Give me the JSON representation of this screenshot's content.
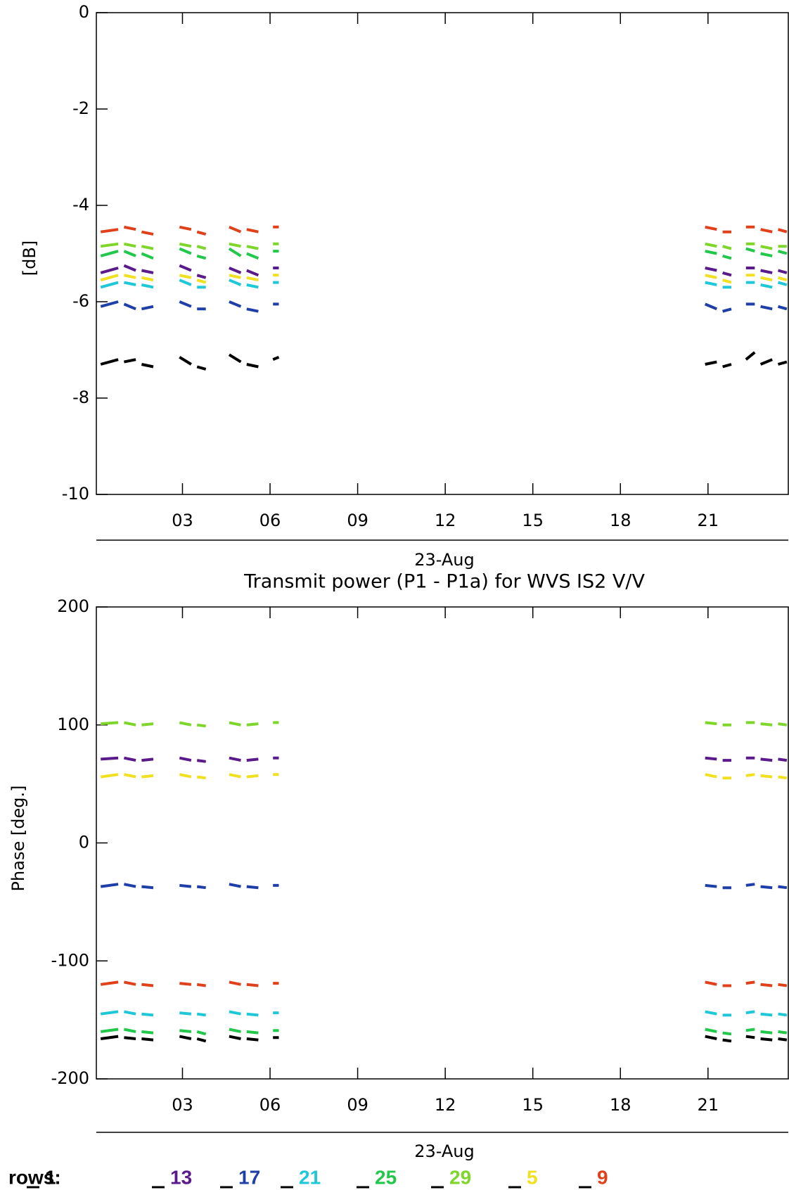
{
  "chart_data": [
    {
      "type": "line",
      "y_label": "[dB]",
      "x_label": "23-Aug",
      "x": [
        0.2,
        0.8,
        0.9,
        1.0,
        1.4,
        1.5,
        1.6,
        2.0,
        2.4,
        2.9,
        3.3,
        3.4,
        3.5,
        3.8,
        4.2,
        4.6,
        5.0,
        5.1,
        5.2,
        5.6,
        5.8,
        6.1,
        6.3,
        13.0,
        20.9,
        21.3,
        21.4,
        21.5,
        21.8,
        22.0,
        22.3,
        22.6,
        22.7,
        22.8,
        23.2,
        23.3,
        23.4,
        23.7
      ],
      "xlim": [
        0.05,
        23.75
      ],
      "xticks": [
        {
          "value": 3,
          "label": "03"
        },
        {
          "value": 6,
          "label": "06"
        },
        {
          "value": 9,
          "label": "09"
        },
        12,
        15,
        18,
        21
      ],
      "ylim": [
        -10,
        0
      ],
      "yticks": [
        -10,
        -8,
        -6,
        -4,
        -2,
        0
      ],
      "legend_title": "rows:",
      "series": [
        {
          "name": "1",
          "color": "#000000",
          "values": [
            -7.3,
            -7.2,
            null,
            -7.25,
            -7.2,
            null,
            -7.3,
            -7.35,
            null,
            -7.15,
            -7.3,
            null,
            -7.35,
            -7.4,
            null,
            -7.1,
            -7.25,
            null,
            -7.3,
            -7.35,
            null,
            -7.2,
            -7.15,
            null,
            -7.3,
            -7.25,
            null,
            -7.35,
            -7.3,
            null,
            -7.2,
            -7.05,
            null,
            -7.3,
            -7.2,
            null,
            -7.3,
            -7.25
          ]
        },
        {
          "name": "13",
          "color": "#5a1a8c",
          "values": [
            -5.4,
            -5.3,
            null,
            -5.25,
            -5.35,
            null,
            -5.35,
            -5.4,
            null,
            -5.25,
            -5.35,
            null,
            -5.45,
            -5.5,
            null,
            -5.3,
            -5.4,
            null,
            -5.35,
            -5.45,
            null,
            -5.3,
            -5.3,
            null,
            -5.3,
            -5.35,
            null,
            -5.4,
            -5.45,
            null,
            -5.3,
            -5.3,
            null,
            -5.35,
            -5.4,
            null,
            -5.35,
            -5.4
          ]
        },
        {
          "name": "17",
          "color": "#1f3fa8",
          "values": [
            -6.1,
            -6.0,
            null,
            -6.05,
            -6.15,
            null,
            -6.15,
            -6.1,
            null,
            -6.0,
            -6.1,
            null,
            -6.15,
            -6.15,
            null,
            -6.0,
            -6.1,
            null,
            -6.15,
            -6.2,
            null,
            -6.05,
            -6.05,
            null,
            -6.05,
            -6.15,
            null,
            -6.2,
            -6.15,
            null,
            -6.05,
            -6.05,
            null,
            -6.1,
            -6.15,
            null,
            -6.1,
            -6.15
          ]
        },
        {
          "name": "21",
          "color": "#1ec8d8",
          "values": [
            -5.7,
            -5.6,
            null,
            -5.6,
            -5.65,
            null,
            -5.65,
            -5.7,
            null,
            -5.55,
            -5.65,
            null,
            -5.7,
            -5.7,
            null,
            -5.55,
            -5.65,
            null,
            -5.65,
            -5.7,
            null,
            -5.6,
            -5.6,
            null,
            -5.6,
            -5.65,
            null,
            -5.7,
            -5.7,
            null,
            -5.6,
            -5.6,
            null,
            -5.65,
            -5.7,
            null,
            -5.6,
            -5.65
          ]
        },
        {
          "name": "25",
          "color": "#22c84a",
          "values": [
            -5.05,
            -4.95,
            null,
            -4.95,
            -5.05,
            null,
            -5.0,
            -5.1,
            null,
            -4.9,
            -5.0,
            null,
            -5.05,
            -5.1,
            null,
            -4.9,
            -5.05,
            null,
            -5.0,
            -5.1,
            null,
            -4.95,
            -4.95,
            null,
            -4.95,
            -5.0,
            null,
            -5.05,
            -5.1,
            null,
            -4.9,
            -4.95,
            null,
            -5.0,
            -5.05,
            null,
            -4.95,
            -5.0
          ]
        },
        {
          "name": "29",
          "color": "#7ed62a",
          "values": [
            -4.85,
            -4.8,
            null,
            -4.8,
            -4.85,
            null,
            -4.85,
            -4.9,
            null,
            -4.8,
            -4.85,
            null,
            -4.85,
            -4.9,
            null,
            -4.8,
            -4.85,
            null,
            -4.85,
            -4.9,
            null,
            -4.8,
            -4.8,
            null,
            -4.8,
            -4.85,
            null,
            -4.85,
            -4.9,
            null,
            -4.8,
            -4.8,
            null,
            -4.85,
            -4.9,
            null,
            -4.85,
            -4.85
          ]
        },
        {
          "name": "5",
          "color": "#f0e020",
          "values": [
            -5.55,
            -5.45,
            null,
            -5.45,
            -5.5,
            null,
            -5.5,
            -5.55,
            null,
            -5.45,
            -5.5,
            null,
            -5.55,
            -5.6,
            null,
            -5.45,
            -5.5,
            null,
            -5.5,
            -5.55,
            null,
            -5.45,
            -5.45,
            null,
            -5.45,
            -5.5,
            null,
            -5.55,
            -5.6,
            null,
            -5.45,
            -5.45,
            null,
            -5.5,
            -5.55,
            null,
            -5.5,
            -5.55
          ]
        },
        {
          "name": "9",
          "color": "#e0401a",
          "values": [
            -4.55,
            -4.5,
            null,
            -4.45,
            -4.5,
            null,
            -4.55,
            -4.6,
            null,
            -4.45,
            -4.5,
            null,
            -4.55,
            -4.6,
            null,
            -4.45,
            -4.55,
            null,
            -4.5,
            -4.55,
            null,
            -4.45,
            -4.45,
            null,
            -4.45,
            -4.5,
            null,
            -4.55,
            -4.55,
            null,
            -4.45,
            -4.45,
            null,
            -4.5,
            -4.55,
            null,
            -4.5,
            -4.55
          ]
        }
      ]
    },
    {
      "type": "line",
      "title": "Transmit power (P1 - P1a) for WVS IS2 V/V",
      "y_label": "Phase [deg.]",
      "x_label": "23-Aug",
      "x": [
        0.2,
        0.8,
        0.9,
        1.0,
        1.4,
        1.5,
        1.6,
        2.0,
        2.4,
        2.9,
        3.3,
        3.4,
        3.5,
        3.8,
        4.2,
        4.6,
        5.0,
        5.1,
        5.2,
        5.6,
        5.8,
        6.1,
        6.3,
        13.0,
        20.9,
        21.3,
        21.4,
        21.5,
        21.8,
        22.0,
        22.3,
        22.6,
        22.7,
        22.8,
        23.2,
        23.3,
        23.4,
        23.7
      ],
      "xlim": [
        0.05,
        23.75
      ],
      "xticks": [
        {
          "value": 3,
          "label": "03"
        },
        {
          "value": 6,
          "label": "06"
        },
        {
          "value": 9,
          "label": "09"
        },
        12,
        15,
        18,
        21
      ],
      "ylim": [
        -200,
        200
      ],
      "yticks": [
        -200,
        -100,
        0,
        100,
        200
      ],
      "series": [
        {
          "name": "1",
          "color": "#000000",
          "values": [
            -166,
            -164,
            null,
            -165,
            -166,
            null,
            -166,
            -167,
            null,
            -164,
            -166,
            null,
            -166,
            -168,
            null,
            -164,
            -166,
            null,
            -166,
            -167,
            null,
            -165,
            -165,
            null,
            -164,
            -166,
            null,
            -167,
            -168,
            null,
            -164,
            -165,
            null,
            -166,
            -167,
            null,
            -166,
            -167
          ]
        },
        {
          "name": "13",
          "color": "#5a1a8c",
          "values": [
            71,
            72,
            null,
            72,
            70,
            null,
            70,
            71,
            null,
            72,
            70,
            null,
            70,
            69,
            null,
            72,
            70,
            null,
            70,
            71,
            null,
            72,
            72,
            null,
            72,
            71,
            null,
            70,
            70,
            null,
            72,
            72,
            null,
            71,
            70,
            null,
            71,
            70
          ]
        },
        {
          "name": "17",
          "color": "#1f3fa8",
          "values": [
            -37,
            -35,
            null,
            -35,
            -37,
            null,
            -37,
            -38,
            null,
            -36,
            -37,
            null,
            -37,
            -38,
            null,
            -35,
            -37,
            null,
            -37,
            -38,
            null,
            -36,
            -36,
            null,
            -36,
            -37,
            null,
            -38,
            -38,
            null,
            -36,
            -35,
            null,
            -37,
            -38,
            null,
            -37,
            -38
          ]
        },
        {
          "name": "21",
          "color": "#1ec8d8",
          "values": [
            -145,
            -143,
            null,
            -143,
            -145,
            null,
            -145,
            -146,
            null,
            -144,
            -145,
            null,
            -145,
            -146,
            null,
            -143,
            -145,
            null,
            -145,
            -146,
            null,
            -144,
            -144,
            null,
            -143,
            -145,
            null,
            -146,
            -146,
            null,
            -144,
            -143,
            null,
            -145,
            -146,
            null,
            -145,
            -146
          ]
        },
        {
          "name": "25",
          "color": "#22c84a",
          "values": [
            -160,
            -158,
            null,
            -158,
            -160,
            null,
            -160,
            -161,
            null,
            -159,
            -160,
            null,
            -160,
            -162,
            null,
            -158,
            -160,
            null,
            -160,
            -161,
            null,
            -159,
            -159,
            null,
            -158,
            -160,
            null,
            -161,
            -162,
            null,
            -159,
            -158,
            null,
            -160,
            -161,
            null,
            -160,
            -161
          ]
        },
        {
          "name": "29",
          "color": "#7ed62a",
          "values": [
            101,
            102,
            null,
            102,
            100,
            null,
            100,
            101,
            null,
            102,
            100,
            null,
            100,
            99,
            null,
            102,
            100,
            null,
            100,
            101,
            null,
            102,
            102,
            null,
            102,
            101,
            null,
            100,
            100,
            null,
            102,
            102,
            null,
            101,
            100,
            null,
            101,
            100
          ]
        },
        {
          "name": "5",
          "color": "#f0e020",
          "values": [
            56,
            58,
            null,
            58,
            56,
            null,
            56,
            57,
            null,
            58,
            56,
            null,
            56,
            55,
            null,
            58,
            56,
            null,
            56,
            57,
            null,
            58,
            58,
            null,
            58,
            56,
            null,
            55,
            55,
            null,
            57,
            58,
            null,
            57,
            56,
            null,
            56,
            55
          ]
        },
        {
          "name": "9",
          "color": "#e0401a",
          "values": [
            -120,
            -118,
            null,
            -118,
            -120,
            null,
            -120,
            -121,
            null,
            -119,
            -120,
            null,
            -120,
            -121,
            null,
            -118,
            -120,
            null,
            -120,
            -121,
            null,
            -119,
            -119,
            null,
            -118,
            -120,
            null,
            -121,
            -121,
            null,
            -119,
            -118,
            null,
            -120,
            -121,
            null,
            -120,
            -121
          ]
        }
      ]
    }
  ]
}
